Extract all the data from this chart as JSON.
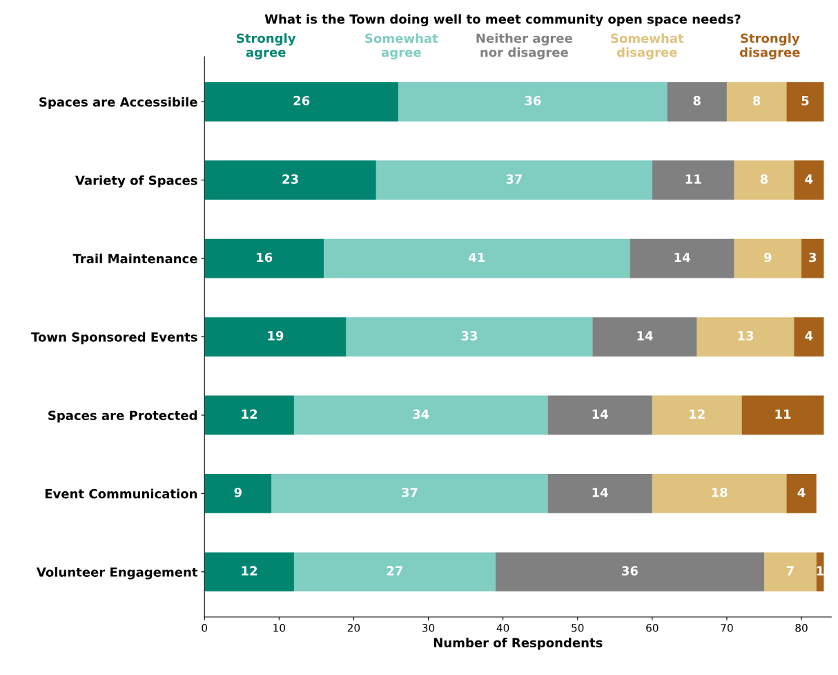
{
  "chart_data": {
    "type": "bar",
    "orientation": "horizontal",
    "stacked": true,
    "title": "What is the Town doing well to meet community open space needs?",
    "xlabel": "Number of Respondents",
    "categories": [
      "Spaces are Accessibile",
      "Variety of Spaces",
      "Trail Maintenance",
      "Town Sponsored Events",
      "Spaces are Protected",
      "Event Communication",
      "Volunteer Engagement"
    ],
    "series": [
      {
        "name": "Strongly\nagree",
        "color": "#018571",
        "values": [
          26,
          23,
          16,
          19,
          12,
          9,
          12
        ]
      },
      {
        "name": "Somewhat\nagree",
        "color": "#80cdc1",
        "values": [
          36,
          37,
          41,
          33,
          34,
          37,
          27
        ]
      },
      {
        "name": "Neither agree\nnor disagree",
        "color": "#808080",
        "values": [
          8,
          11,
          14,
          14,
          14,
          14,
          36
        ]
      },
      {
        "name": "Somewhat\ndisagree",
        "color": "#dfc27d",
        "values": [
          8,
          8,
          9,
          13,
          12,
          18,
          7
        ]
      },
      {
        "name": "Strongly\ndisagree",
        "color": "#a6611a",
        "values": [
          5,
          4,
          3,
          4,
          11,
          4,
          1
        ]
      }
    ],
    "data_labels": true,
    "xlim": [
      0,
      84
    ],
    "xticks": [
      0,
      10,
      20,
      30,
      40,
      50,
      60,
      70,
      80
    ],
    "legend": "top",
    "grid": false
  }
}
